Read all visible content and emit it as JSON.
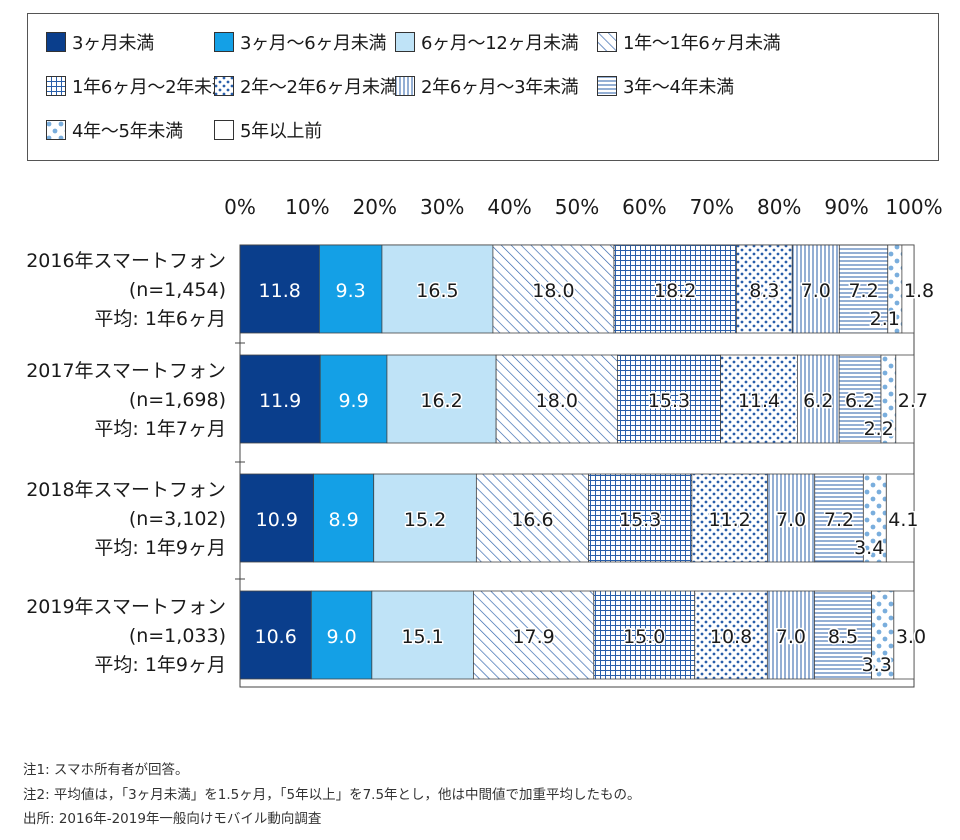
{
  "chart_data": {
    "type": "bar",
    "orientation": "horizontal",
    "stacked": true,
    "percent_stacked": true,
    "grid": false,
    "legend_position": "top",
    "xlim": [
      0,
      100
    ],
    "x_ticks": [
      "0%",
      "10%",
      "20%",
      "30%",
      "40%",
      "50%",
      "60%",
      "70%",
      "80%",
      "90%",
      "100%"
    ],
    "categories": [
      [
        "2016年スマートフォン",
        "(n=1,454)",
        "平均: 1年6ヶ月"
      ],
      [
        "2017年スマートフォン",
        "(n=1,698)",
        "平均: 1年7ヶ月"
      ],
      [
        "2018年スマートフォン",
        "(n=3,102)",
        "平均: 1年9ヶ月"
      ],
      [
        "2019年スマートフォン",
        "(n=1,033)",
        "平均: 1年9ヶ月"
      ]
    ],
    "series": [
      {
        "name": "3ヶ月未満",
        "values": [
          11.8,
          11.9,
          10.9,
          10.6
        ],
        "fill": "#0a3e8c",
        "pattern": "solid"
      },
      {
        "name": "3ヶ月〜6ヶ月未満",
        "values": [
          9.3,
          9.9,
          8.9,
          9.0
        ],
        "fill": "#14a0e6",
        "pattern": "solid"
      },
      {
        "name": "6ヶ月〜12ヶ月未満",
        "values": [
          16.5,
          16.2,
          15.2,
          15.1
        ],
        "fill": "#bfe3f7",
        "pattern": "solid"
      },
      {
        "name": "1年〜1年6ヶ月未満",
        "values": [
          18.0,
          18.0,
          16.6,
          17.9
        ],
        "fill": "#ffffff",
        "pattern": "diagonal"
      },
      {
        "name": "1年6ヶ月〜2年未満",
        "values": [
          18.2,
          15.3,
          15.3,
          15.0
        ],
        "fill": "#ffffff",
        "pattern": "grid"
      },
      {
        "name": "2年〜2年6ヶ月未満",
        "values": [
          8.3,
          11.4,
          11.2,
          10.8
        ],
        "fill": "#ffffff",
        "pattern": "dots"
      },
      {
        "name": "2年6ヶ月〜3年未満",
        "values": [
          7.0,
          6.2,
          7.0,
          7.0
        ],
        "fill": "#ffffff",
        "pattern": "vertical"
      },
      {
        "name": "3年〜4年未満",
        "values": [
          7.2,
          6.2,
          7.2,
          8.5
        ],
        "fill": "#ffffff",
        "pattern": "horizontal"
      },
      {
        "name": "4年〜5年未満",
        "values": [
          2.1,
          2.2,
          3.4,
          3.3
        ],
        "fill": "#ffffff",
        "pattern": "sparse-dots"
      },
      {
        "name": "5年以上前",
        "values": [
          1.8,
          2.7,
          4.1,
          3.0
        ],
        "fill": "#ffffff",
        "pattern": "none"
      }
    ],
    "colors": {
      "dark_navy": "#0a3e8c",
      "blue": "#14a0e6",
      "light_blue": "#bfe3f7",
      "pattern_blue": "#2a5faa",
      "dot_blue": "#7aaedd"
    }
  },
  "notes": [
    "注1: スマホ所有者が回答。",
    "注2: 平均値は，「3ヶ月未満」を1.5ヶ月，「5年以上」を7.5年とし，他は中間値で加重平均したもの。",
    "出所: 2016年-2019年一般向けモバイル動向調査"
  ]
}
